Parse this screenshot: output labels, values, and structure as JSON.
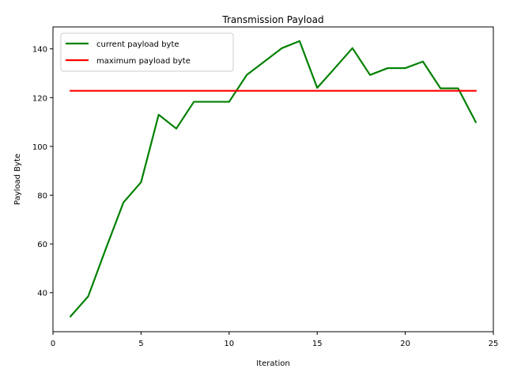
{
  "chart_data": {
    "type": "line",
    "title": "Transmission Payload",
    "xlabel": "Iteration",
    "ylabel": "Payload Byte",
    "xlim": [
      0,
      25
    ],
    "ylim": [
      24,
      149
    ],
    "xticks": [
      0,
      5,
      10,
      15,
      20,
      25
    ],
    "yticks": [
      40,
      60,
      80,
      100,
      120,
      140
    ],
    "grid": false,
    "legend_position": "top-left",
    "x": [
      1,
      2,
      3,
      4,
      5,
      6,
      7,
      8,
      9,
      10,
      11,
      12,
      13,
      14,
      15,
      16,
      17,
      18,
      19,
      20,
      21,
      22,
      23,
      24
    ],
    "series": [
      {
        "name": "current payload byte",
        "color": "#008000",
        "values": [
          30.3,
          38.5,
          58,
          77,
          85.3,
          113,
          107.3,
          118.3,
          118.3,
          118.3,
          129.3,
          134.8,
          140.3,
          143.2,
          124,
          132.1,
          140.3,
          129.3,
          132.1,
          132.1,
          134.8,
          123.8,
          123.8,
          110
        ]
      },
      {
        "name": "maximum payload byte",
        "color": "#ff0000",
        "values": [
          122.8,
          122.8,
          122.8,
          122.8,
          122.8,
          122.8,
          122.8,
          122.8,
          122.8,
          122.8,
          122.8,
          122.8,
          122.8,
          122.8,
          122.8,
          122.8,
          122.8,
          122.8,
          122.8,
          122.8,
          122.8,
          122.8,
          122.8,
          122.8
        ]
      }
    ]
  }
}
